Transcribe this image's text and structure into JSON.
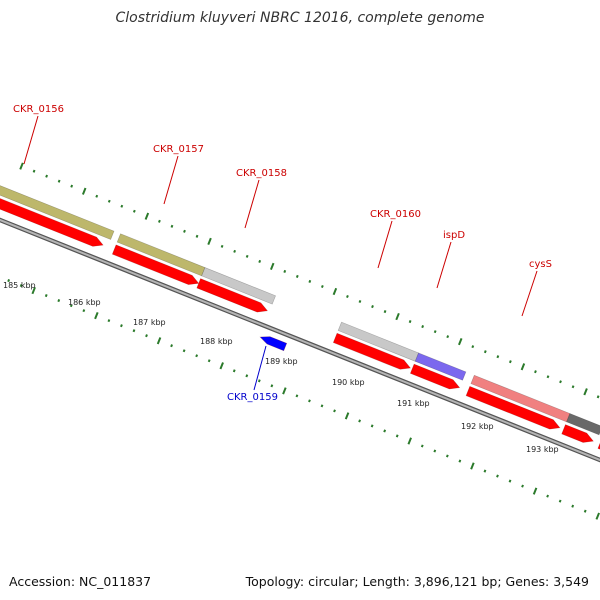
{
  "title": "Clostridium kluyveri NBRC 12016, complete genome",
  "accession": "Accession: NC_011837",
  "summary": "Topology: circular; Length: 3,896,121 bp; Genes: 3,549",
  "colors": {
    "backbone": "#8c8c8c",
    "tick": "#2b7a2b",
    "cds": "#ff0000",
    "label_red": "#cc0000",
    "label_blue": "#0000cc",
    "khaki": "#bdb76b",
    "grey": "#c8c8c8",
    "purple": "#7b68ee",
    "pink": "#f08080",
    "dark": "#696969",
    "blue": "#0000ff"
  },
  "kbp_labels": [
    "185 kbp",
    "186 kbp",
    "187 kbp",
    "188 kbp",
    "189 kbp",
    "190 kbp",
    "191 kbp",
    "192 kbp",
    "193 kbp"
  ],
  "genes": [
    {
      "label": "CKR_0156",
      "strand": "plus",
      "color": "label_red"
    },
    {
      "label": "CKR_0157",
      "strand": "plus",
      "color": "label_red"
    },
    {
      "label": "CKR_0158",
      "strand": "plus",
      "color": "label_red"
    },
    {
      "label": "CKR_0159",
      "strand": "minus",
      "color": "label_blue"
    },
    {
      "label": "CKR_0160",
      "strand": "plus",
      "color": "label_red"
    },
    {
      "label": "ispD",
      "strand": "plus",
      "color": "label_red"
    },
    {
      "label": "cysS",
      "strand": "plus",
      "color": "label_red"
    }
  ]
}
